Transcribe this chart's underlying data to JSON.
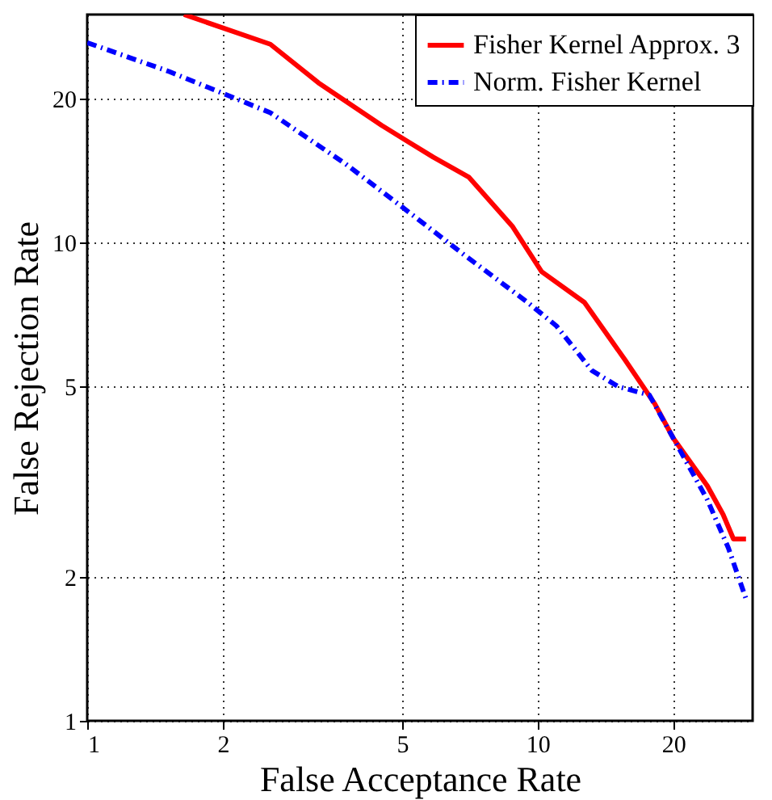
{
  "chart_data": {
    "type": "line",
    "xlabel": "False Acceptance Rate",
    "ylabel": "False Rejection Rate",
    "log": "xy",
    "xlim": [
      1,
      30
    ],
    "ylim": [
      1,
      30
    ],
    "xticks": [
      1,
      2,
      5,
      10,
      20
    ],
    "yticks": [
      1,
      2,
      5,
      10,
      20
    ],
    "grid": true,
    "legend": "top right",
    "marker": "none",
    "series": [
      {
        "name": "Fisher Kernel Approx. 3",
        "color": "#ff0000",
        "line_style": "solid",
        "x": [
          1.64,
          2.55,
          3.26,
          4.5,
          5.86,
          7.04,
          8.8,
          10.2,
          12.7,
          15.6,
          18.2,
          20,
          23.8,
          25.8,
          27.2,
          29
        ],
        "values": [
          30,
          26,
          21.6,
          17.6,
          15.1,
          13.7,
          10.8,
          8.7,
          7.5,
          5.7,
          4.6,
          3.9,
          3.1,
          2.7,
          2.4,
          2.4
        ]
      },
      {
        "name": "Norm. Fisher Kernel",
        "color": "#0000ff",
        "line_style": "dashed",
        "x": [
          1.0,
          1.52,
          2.55,
          3.75,
          4.93,
          6.9,
          9.5,
          11.0,
          13.2,
          15.1,
          17.7,
          20,
          23.8,
          26.5,
          29
        ],
        "values": [
          26.2,
          22.8,
          18.7,
          14.6,
          12.0,
          9.4,
          7.5,
          6.7,
          5.4,
          5.0,
          4.8,
          3.9,
          2.9,
          2.3,
          1.8
        ]
      }
    ]
  }
}
